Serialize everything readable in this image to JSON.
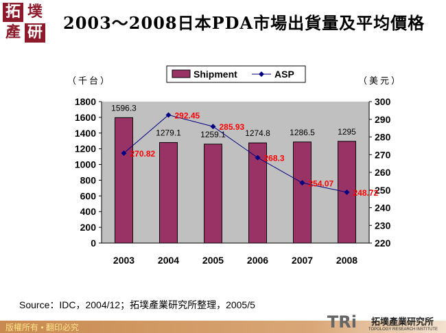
{
  "logo": {
    "chars": [
      "拓",
      "墣",
      "產",
      "研"
    ]
  },
  "title": "2003～2008日本PDA市場出貨量及平均價格",
  "chart_data": {
    "type": "bar+line",
    "categories": [
      "2003",
      "2004",
      "2005",
      "2006",
      "2007",
      "2008"
    ],
    "series": [
      {
        "name": "Shipment",
        "type": "bar",
        "axis": "left",
        "values": [
          1596.3,
          1279.1,
          1259.1,
          1274.8,
          1286.5,
          1295
        ],
        "color": "#993366"
      },
      {
        "name": "ASP",
        "type": "line",
        "axis": "right",
        "values": [
          270.82,
          292.45,
          285.93,
          268.3,
          254.07,
          248.72
        ],
        "color": "#000080"
      }
    ],
    "ylabel_left": "（千台）",
    "ylabel_right": "（美元）",
    "ylim_left": [
      0,
      1800
    ],
    "yticks_left": [
      0,
      200,
      400,
      600,
      800,
      1000,
      1200,
      1400,
      1600,
      1800
    ],
    "ylim_right": [
      220,
      300
    ],
    "yticks_right": [
      220,
      230,
      240,
      250,
      260,
      270,
      280,
      290,
      300
    ],
    "legend": "top",
    "grid": false,
    "plot_bg": "#c0c0c0",
    "label_color_line": "#ff0000"
  },
  "source": "Source：IDC，2004/12；拓墣產業研究所整理，2005/5",
  "footer": {
    "copyright": "版權所有 • 翻印必究",
    "brand": "TRi",
    "brand_zh": "拓墣產業研究所",
    "brand_en": "TOPOLOGY RESEARCH INSTITUTE"
  }
}
